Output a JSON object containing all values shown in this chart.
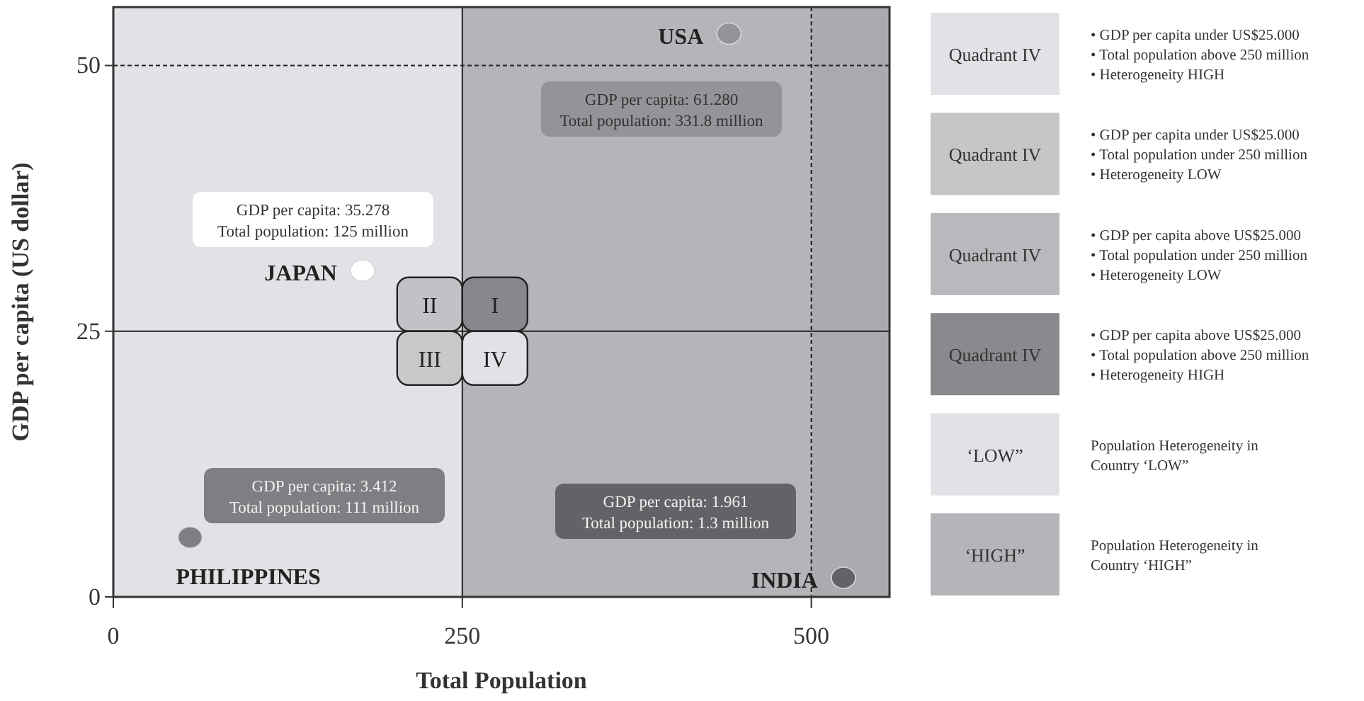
{
  "chart_data": [
    {
      "type": "scatter",
      "xlabel": "Total Population",
      "ylabel": "GDP per capita (US dollar)",
      "xlim": [
        0,
        556
      ],
      "ylim": [
        0,
        55.5
      ],
      "xticks": [
        0,
        250,
        500
      ],
      "yticks": [
        0,
        25,
        50
      ],
      "grid": false,
      "marker": "circle",
      "series": [
        {
          "name": "USA",
          "color": "#949498",
          "x": [
            441
          ],
          "values": [
            53.0
          ]
        },
        {
          "name": "JAPAN",
          "color": "#ffffff",
          "x": [
            178.5
          ],
          "values": [
            30.7
          ]
        },
        {
          "name": "PHILIPPINES",
          "color": "#7f7f83",
          "x": [
            55
          ],
          "values": [
            5.6
          ]
        },
        {
          "name": "INDIA",
          "color": "#636367",
          "x": [
            523
          ],
          "values": [
            1.8
          ]
        }
      ],
      "bands": [
        {
          "axis": "x",
          "from": 0,
          "to": 250,
          "color": "#e1e2e5"
        },
        {
          "axis": "x",
          "from": 250,
          "to": 500,
          "color": "#b5b5b9"
        },
        {
          "axis": "x",
          "from": 500,
          "to": 556,
          "color": "#ababaf"
        }
      ],
      "ref_lines": [
        {
          "axis": "x",
          "value": 250,
          "line_style": "solid"
        },
        {
          "axis": "y",
          "value": 25,
          "line_style": "solid"
        },
        {
          "axis": "x",
          "value": 500,
          "line_style": "dashed"
        },
        {
          "axis": "y",
          "value": 50,
          "line_style": "dashed"
        }
      ],
      "annotations": [
        "GDP per capita: 61.280\nTotal population: 331.8 million",
        "GDP per capita: 35.278\nTotal population: 125 million",
        "GDP per capita: 3.412\nTotal population: 111 million",
        "GDP per capita: 1.961\nTotal population: 1.3 million",
        "II",
        "I",
        "III",
        "IV"
      ]
    },
    {
      "type": "other",
      "categories": [
        "Quadrant IV",
        "Quadrant IV",
        "Quadrant IV",
        "Quadrant IV",
        "‘LOW”",
        "‘HIGH”"
      ],
      "colors": [
        "#e1e2e5",
        "#c6c6c9",
        "#b9b9bd",
        "#8a8a8e",
        "#e1e2e5",
        "#b5b5b9"
      ],
      "annotations": [
        "• GDP per capita under US$25.000\n• Total population above 250 million\n• Heterogeneity HIGH",
        "• GDP per capita under US$25.000\n• Total population under 250 million\n• Heterogeneity LOW",
        "• GDP per capita above US$25.000\n• Total population under 250 million\n• Heterogeneity LOW",
        "• GDP per capita above US$25.000\n• Total population above 250 million\n• Heterogeneity HIGH",
        "Population Heterogeneity in\nCountry ‘LOW”",
        "Population Heterogeneity in\nCountry ‘HIGH”"
      ]
    }
  ]
}
